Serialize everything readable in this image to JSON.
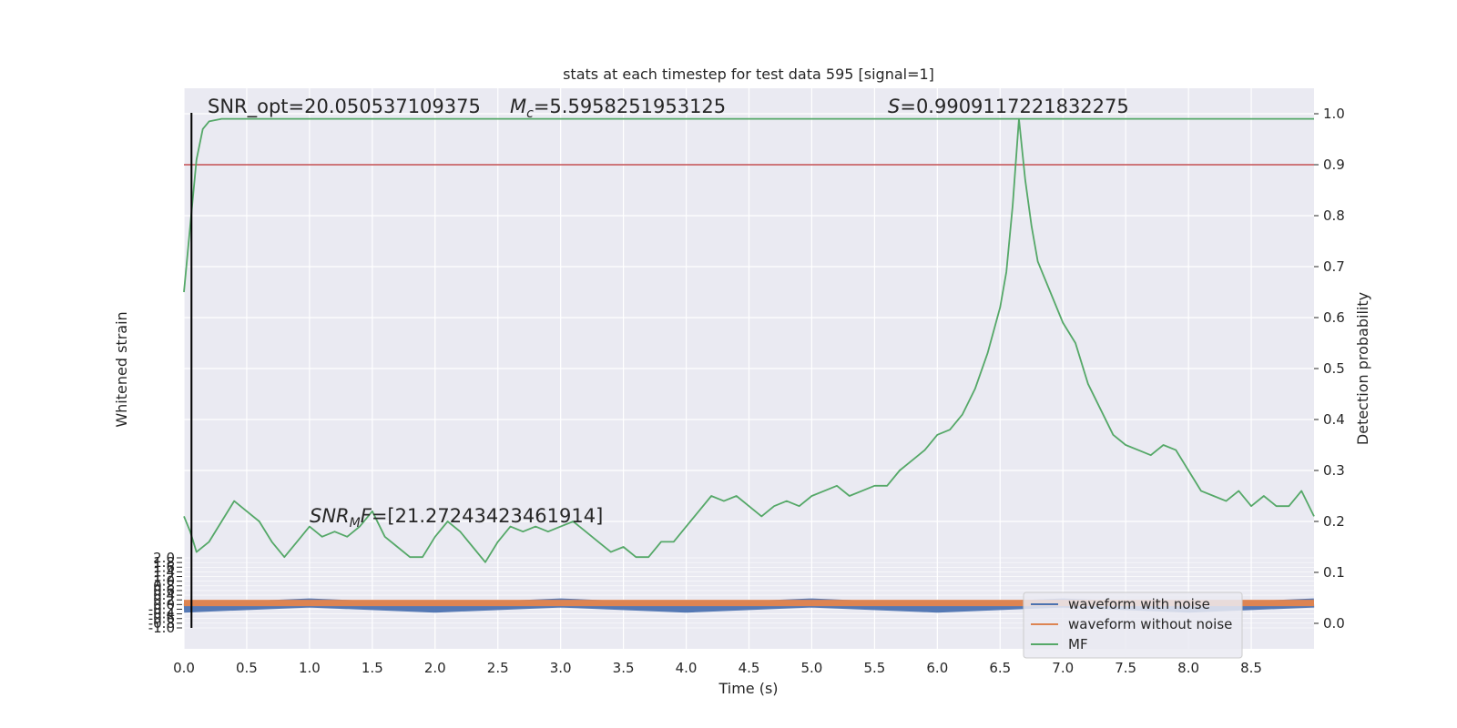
{
  "chart_data": {
    "type": "line",
    "title": "stats at each timestep for test data 595 [signal=1]",
    "xlabel": "Time (s)",
    "ylabel_left": "Whitened strain",
    "ylabel_right": "Detection probability",
    "xlim": [
      0.0,
      9.0
    ],
    "ylim_right": [
      -0.05,
      1.05
    ],
    "x_ticks": [
      "0.0",
      "0.5",
      "1.0",
      "1.5",
      "2.0",
      "2.5",
      "3.0",
      "3.5",
      "4.0",
      "4.5",
      "5.0",
      "5.5",
      "6.0",
      "6.5",
      "7.0",
      "7.5",
      "8.0",
      "8.5"
    ],
    "y_ticks_right": [
      "0.0",
      "0.1",
      "0.2",
      "0.3",
      "0.4",
      "0.5",
      "0.6",
      "0.7",
      "0.8",
      "0.9",
      "1.0"
    ],
    "y_ticks_left": [
      "-1.0",
      "-0.8",
      "-0.6",
      "-0.4",
      "-0.2",
      "0.0",
      "0.2",
      "0.4",
      "0.6",
      "0.8",
      "1.0",
      "1.2",
      "1.4",
      "1.6",
      "1.8",
      "2.0"
    ],
    "grid": true,
    "legend_position": "lower-right",
    "threshold": 0.9,
    "marker_time": 0.06,
    "annotations": {
      "snr_opt": "SNR_opt=20.050537109375",
      "mc": "=5.5958251953125",
      "s": "=0.9909117221832275",
      "snr_mf": "=[21.27243423461914]"
    },
    "series": [
      {
        "name": "waveform with noise",
        "color": "#4c72b0",
        "points": [
          [
            0.0,
            0.03
          ],
          [
            1.0,
            0.04
          ],
          [
            2.0,
            0.03
          ],
          [
            3.0,
            0.04
          ],
          [
            4.0,
            0.03
          ],
          [
            5.0,
            0.04
          ],
          [
            6.0,
            0.03
          ],
          [
            7.0,
            0.04
          ],
          [
            8.0,
            0.03
          ],
          [
            9.0,
            0.04
          ]
        ]
      },
      {
        "name": "waveform without noise",
        "color": "#dd8452",
        "points": [
          [
            0.0,
            0.04
          ],
          [
            9.0,
            0.04
          ]
        ]
      },
      {
        "name": "MF",
        "color": "#55a868",
        "points": [
          [
            0.0,
            0.21
          ],
          [
            0.05,
            0.18
          ],
          [
            0.1,
            0.14
          ],
          [
            0.2,
            0.16
          ],
          [
            0.3,
            0.2
          ],
          [
            0.4,
            0.24
          ],
          [
            0.5,
            0.22
          ],
          [
            0.6,
            0.2
          ],
          [
            0.7,
            0.16
          ],
          [
            0.8,
            0.13
          ],
          [
            0.9,
            0.16
          ],
          [
            1.0,
            0.19
          ],
          [
            1.1,
            0.17
          ],
          [
            1.2,
            0.18
          ],
          [
            1.3,
            0.17
          ],
          [
            1.4,
            0.19
          ],
          [
            1.5,
            0.22
          ],
          [
            1.6,
            0.17
          ],
          [
            1.7,
            0.15
          ],
          [
            1.8,
            0.13
          ],
          [
            1.9,
            0.13
          ],
          [
            2.0,
            0.17
          ],
          [
            2.1,
            0.2
          ],
          [
            2.2,
            0.18
          ],
          [
            2.3,
            0.15
          ],
          [
            2.4,
            0.12
          ],
          [
            2.5,
            0.16
          ],
          [
            2.6,
            0.19
          ],
          [
            2.7,
            0.18
          ],
          [
            2.8,
            0.19
          ],
          [
            2.9,
            0.18
          ],
          [
            3.0,
            0.19
          ],
          [
            3.1,
            0.2
          ],
          [
            3.2,
            0.18
          ],
          [
            3.3,
            0.16
          ],
          [
            3.4,
            0.14
          ],
          [
            3.5,
            0.15
          ],
          [
            3.6,
            0.13
          ],
          [
            3.7,
            0.13
          ],
          [
            3.8,
            0.16
          ],
          [
            3.9,
            0.16
          ],
          [
            4.0,
            0.19
          ],
          [
            4.1,
            0.22
          ],
          [
            4.2,
            0.25
          ],
          [
            4.3,
            0.24
          ],
          [
            4.4,
            0.25
          ],
          [
            4.5,
            0.23
          ],
          [
            4.6,
            0.21
          ],
          [
            4.7,
            0.23
          ],
          [
            4.8,
            0.24
          ],
          [
            4.9,
            0.23
          ],
          [
            5.0,
            0.25
          ],
          [
            5.1,
            0.26
          ],
          [
            5.2,
            0.27
          ],
          [
            5.3,
            0.25
          ],
          [
            5.4,
            0.26
          ],
          [
            5.5,
            0.27
          ],
          [
            5.6,
            0.27
          ],
          [
            5.7,
            0.3
          ],
          [
            5.8,
            0.32
          ],
          [
            5.9,
            0.34
          ],
          [
            6.0,
            0.37
          ],
          [
            6.1,
            0.38
          ],
          [
            6.2,
            0.41
          ],
          [
            6.3,
            0.46
          ],
          [
            6.4,
            0.53
          ],
          [
            6.5,
            0.62
          ],
          [
            6.55,
            0.69
          ],
          [
            6.6,
            0.82
          ],
          [
            6.65,
            0.99
          ],
          [
            6.7,
            0.87
          ],
          [
            6.75,
            0.78
          ],
          [
            6.8,
            0.71
          ],
          [
            6.9,
            0.65
          ],
          [
            7.0,
            0.59
          ],
          [
            7.1,
            0.55
          ],
          [
            7.2,
            0.47
          ],
          [
            7.3,
            0.42
          ],
          [
            7.4,
            0.37
          ],
          [
            7.5,
            0.35
          ],
          [
            7.6,
            0.34
          ],
          [
            7.7,
            0.33
          ],
          [
            7.8,
            0.35
          ],
          [
            7.9,
            0.34
          ],
          [
            8.0,
            0.3
          ],
          [
            8.1,
            0.26
          ],
          [
            8.2,
            0.25
          ],
          [
            8.3,
            0.24
          ],
          [
            8.4,
            0.26
          ],
          [
            8.5,
            0.23
          ],
          [
            8.6,
            0.25
          ],
          [
            8.7,
            0.23
          ],
          [
            8.8,
            0.23
          ],
          [
            8.9,
            0.26
          ],
          [
            9.0,
            0.21
          ]
        ]
      },
      {
        "name": "",
        "color": "#55a868",
        "points": [
          [
            0.0,
            0.65
          ],
          [
            0.05,
            0.78
          ],
          [
            0.1,
            0.91
          ],
          [
            0.15,
            0.97
          ],
          [
            0.2,
            0.985
          ],
          [
            0.3,
            0.99
          ],
          [
            9.0,
            0.99
          ]
        ]
      }
    ]
  }
}
